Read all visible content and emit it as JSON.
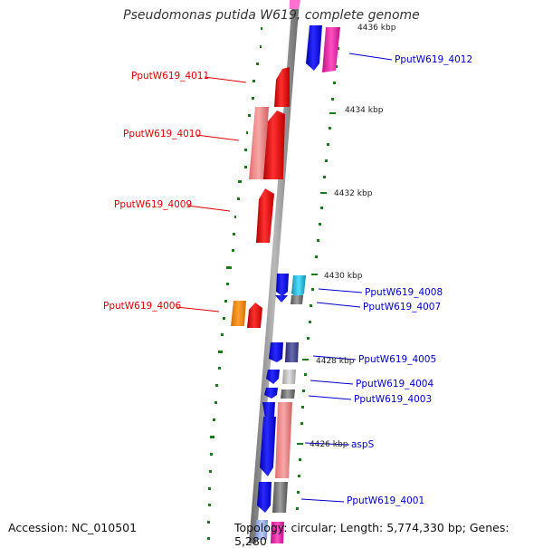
{
  "title": "Pseudomonas putida W619, complete genome",
  "accession": "Accession: NC_010501",
  "topology": "Topology: circular; Length: 5,774,330 bp; Genes: 5,280",
  "kbp_labels": {
    "k4436": "4436 kbp",
    "k4434": "4434 kbp",
    "k4432": "4432 kbp",
    "k4430": "4430 kbp",
    "k4428": "4428 kbp",
    "k4426": "4426 kbp"
  },
  "genes": {
    "g4012": "PputW619_4012",
    "g4011": "PputW619_4011",
    "g4010": "PputW619_4010",
    "g4009": "PputW619_4009",
    "g4008": "PputW619_4008",
    "g4007": "PputW619_4007",
    "g4006": "PputW619_4006",
    "g4005": "PputW619_4005",
    "g4004": "PputW619_4004",
    "g4003": "PputW619_4003",
    "aspS": "aspS",
    "g4001": "PputW619_4001"
  },
  "colors": {
    "forward_gene": "#ff0000",
    "reverse_gene": "#0000ff",
    "label_forward": "#e00000",
    "label_reverse": "#0000cc",
    "gc_tick": "#1a7a1a",
    "backbone": "#8a8a8a"
  }
}
